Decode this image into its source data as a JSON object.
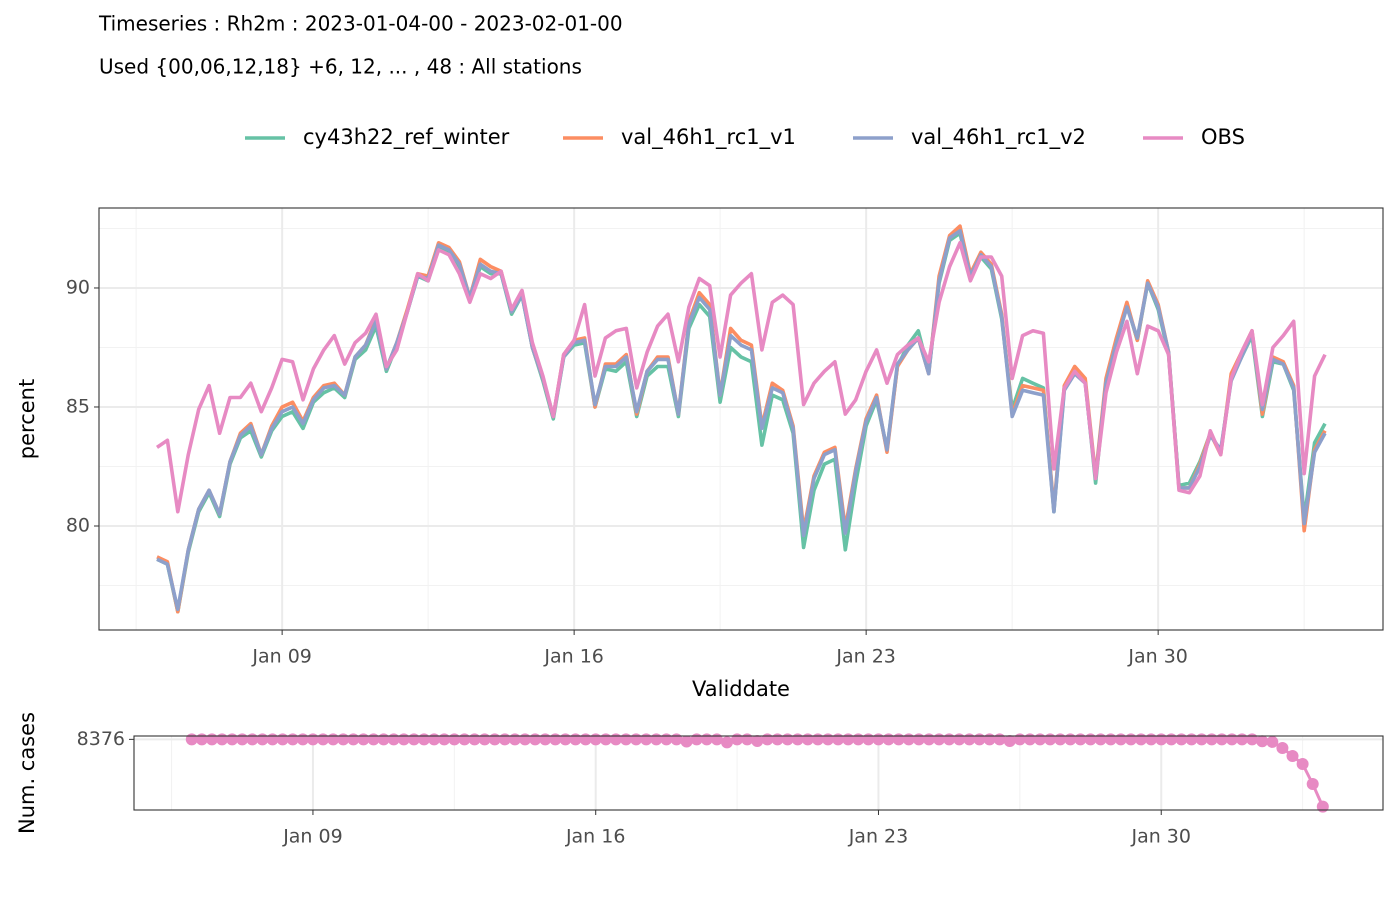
{
  "chart_data": [
    {
      "type": "line",
      "title": "Timeseries : Rh2m : 2023-01-04-00 - 2023-02-01-00",
      "subtitle": "Used {00,06,12,18} +6, 12, ... , 48 : All stations",
      "x_label": "Validdate",
      "y_label": "percent",
      "legend": "top",
      "grid": true,
      "xlim": [
        4.61,
        35.39
      ],
      "xticks": [
        {
          "value": 9,
          "label": "Jan 09"
        },
        {
          "value": 16,
          "label": "Jan 16"
        },
        {
          "value": 23,
          "label": "Jan 23"
        },
        {
          "value": 30,
          "label": "Jan 30"
        }
      ],
      "ylim": [
        75.63,
        93.36
      ],
      "yticks": [
        80,
        85,
        90
      ],
      "x": [
        6,
        6.25,
        6.5,
        6.75,
        7,
        7.25,
        7.5,
        7.75,
        8,
        8.25,
        8.5,
        8.75,
        9,
        9.25,
        9.5,
        9.75,
        10,
        10.25,
        10.5,
        10.75,
        11,
        11.25,
        11.5,
        11.75,
        12,
        12.25,
        12.5,
        12.75,
        13,
        13.25,
        13.5,
        13.75,
        14,
        14.25,
        14.5,
        14.75,
        15,
        15.25,
        15.5,
        15.75,
        16,
        16.25,
        16.5,
        16.75,
        17,
        17.25,
        17.5,
        17.75,
        18,
        18.25,
        18.5,
        18.75,
        19,
        19.25,
        19.5,
        19.75,
        20,
        20.25,
        20.5,
        20.75,
        21,
        21.25,
        21.5,
        21.75,
        22,
        22.25,
        22.5,
        22.75,
        23,
        23.25,
        23.5,
        23.75,
        24,
        24.25,
        24.5,
        24.75,
        25,
        25.25,
        25.5,
        25.75,
        26,
        26.25,
        26.5,
        26.75,
        27,
        27.25,
        27.5,
        27.75,
        28,
        28.25,
        28.5,
        28.75,
        29,
        29.25,
        29.5,
        29.75,
        30,
        30.25,
        30.5,
        30.75,
        31,
        31.25,
        31.5,
        31.75,
        32,
        32.25,
        32.5,
        32.75,
        33,
        33.25,
        33.5,
        33.75,
        34
      ],
      "series": [
        {
          "name": "cy43h22_ref_winter",
          "color": "#66c2a5",
          "values": [
            78.6,
            78.4,
            76.4,
            78.9,
            80.6,
            81.4,
            80.4,
            82.6,
            83.7,
            84.0,
            82.9,
            84.0,
            84.6,
            84.8,
            84.1,
            85.2,
            85.6,
            85.8,
            85.4,
            87.0,
            87.4,
            88.4,
            86.5,
            87.6,
            89.0,
            90.5,
            90.3,
            91.7,
            91.5,
            90.9,
            89.5,
            90.9,
            90.6,
            90.6,
            88.9,
            89.7,
            87.5,
            86.1,
            84.5,
            87.1,
            87.6,
            87.7,
            85.0,
            86.6,
            86.5,
            86.9,
            84.6,
            86.3,
            86.7,
            86.7,
            84.6,
            88.3,
            89.3,
            88.8,
            85.2,
            87.5,
            87.1,
            86.9,
            83.4,
            85.5,
            85.3,
            83.9,
            79.1,
            81.5,
            82.6,
            82.8,
            79.0,
            81.8,
            84.2,
            85.3,
            83.2,
            86.7,
            87.6,
            88.2,
            86.5,
            90.2,
            92.0,
            92.3,
            90.4,
            91.3,
            90.8,
            88.7,
            84.9,
            86.2,
            86.0,
            85.8,
            80.6,
            85.8,
            86.6,
            86.1,
            81.8,
            86.1,
            87.8,
            89.3,
            87.8,
            90.2,
            89.1,
            87.2,
            81.7,
            81.8,
            82.7,
            83.9,
            83.1,
            86.2,
            87.1,
            88.0,
            84.6,
            86.9,
            86.8,
            85.7,
            80.3,
            83.5,
            84.3
          ]
        },
        {
          "name": "val_46h1_rc1_v1",
          "color": "#fc8d62",
          "values": [
            78.7,
            78.5,
            76.4,
            79.0,
            80.7,
            81.5,
            80.5,
            82.7,
            83.9,
            84.3,
            83.0,
            84.2,
            85.0,
            85.2,
            84.4,
            85.4,
            85.9,
            86.0,
            85.5,
            87.1,
            87.6,
            88.7,
            86.6,
            87.7,
            89.1,
            90.6,
            90.5,
            91.9,
            91.7,
            91.1,
            89.6,
            91.2,
            90.9,
            90.7,
            89.0,
            89.8,
            87.5,
            86.2,
            84.6,
            87.2,
            87.8,
            87.9,
            85.0,
            86.8,
            86.8,
            87.2,
            84.7,
            86.5,
            87.1,
            87.1,
            84.7,
            88.6,
            89.8,
            89.3,
            85.5,
            88.3,
            87.8,
            87.6,
            84.2,
            86.0,
            85.7,
            84.2,
            79.8,
            82.1,
            83.1,
            83.3,
            79.9,
            82.4,
            84.5,
            85.5,
            83.1,
            86.7,
            87.4,
            87.9,
            86.4,
            90.5,
            92.2,
            92.6,
            90.6,
            91.5,
            91.0,
            88.9,
            84.7,
            85.9,
            85.8,
            85.7,
            80.7,
            85.9,
            86.7,
            86.2,
            82.1,
            86.2,
            87.9,
            89.4,
            87.8,
            90.3,
            89.3,
            87.3,
            81.6,
            81.6,
            82.6,
            83.9,
            83.0,
            86.4,
            87.3,
            88.2,
            84.7,
            87.1,
            86.9,
            85.9,
            79.8,
            83.2,
            84.0
          ]
        },
        {
          "name": "val_46h1_rc1_v2",
          "color": "#8da0cb",
          "values": [
            78.6,
            78.4,
            76.5,
            79.0,
            80.7,
            81.5,
            80.5,
            82.7,
            83.8,
            84.2,
            83.0,
            84.1,
            84.8,
            85.0,
            84.3,
            85.3,
            85.8,
            85.9,
            85.5,
            87.1,
            87.6,
            88.6,
            86.6,
            87.7,
            89.0,
            90.5,
            90.4,
            91.8,
            91.6,
            91.0,
            89.6,
            91.0,
            90.7,
            90.6,
            89.0,
            89.7,
            87.5,
            86.2,
            84.6,
            87.1,
            87.7,
            87.8,
            85.1,
            86.7,
            86.7,
            87.1,
            84.8,
            86.5,
            87.0,
            87.0,
            84.7,
            88.5,
            89.6,
            89.1,
            85.5,
            88.0,
            87.6,
            87.4,
            84.1,
            85.8,
            85.6,
            84.1,
            79.6,
            82.0,
            83.0,
            83.2,
            79.7,
            82.3,
            84.4,
            85.4,
            83.2,
            86.8,
            87.4,
            87.9,
            86.4,
            90.3,
            92.1,
            92.4,
            90.5,
            91.4,
            90.9,
            88.8,
            84.6,
            85.7,
            85.6,
            85.5,
            80.6,
            85.7,
            86.4,
            86.0,
            82.0,
            86.0,
            87.7,
            89.2,
            87.9,
            90.2,
            89.2,
            87.3,
            81.6,
            81.6,
            82.5,
            83.8,
            83.2,
            86.1,
            87.1,
            88.1,
            84.9,
            87.0,
            86.8,
            85.8,
            80.1,
            83.1,
            83.9
          ]
        },
        {
          "name": "OBS",
          "color": "#e78ac3",
          "values": [
            83.3,
            83.6,
            80.6,
            83.0,
            84.9,
            85.9,
            83.9,
            85.4,
            85.4,
            86.0,
            84.8,
            85.8,
            87.0,
            86.9,
            85.3,
            86.6,
            87.4,
            88.0,
            86.8,
            87.7,
            88.1,
            88.9,
            86.7,
            87.4,
            89.0,
            90.6,
            90.3,
            91.6,
            91.4,
            90.6,
            89.4,
            90.6,
            90.4,
            90.7,
            89.1,
            89.9,
            87.7,
            86.3,
            84.6,
            87.2,
            87.8,
            89.3,
            86.3,
            87.9,
            88.2,
            88.3,
            85.8,
            87.3,
            88.4,
            88.9,
            86.9,
            89.2,
            90.4,
            90.1,
            87.1,
            89.7,
            90.2,
            90.6,
            87.4,
            89.4,
            89.7,
            89.3,
            85.1,
            86.0,
            86.5,
            86.9,
            84.7,
            85.3,
            86.5,
            87.4,
            86.0,
            87.2,
            87.6,
            87.9,
            86.9,
            89.4,
            90.9,
            91.9,
            90.3,
            91.3,
            91.3,
            90.5,
            86.2,
            88.0,
            88.2,
            88.1,
            82.4,
            85.8,
            86.5,
            86.0,
            82.0,
            85.6,
            87.3,
            88.6,
            86.4,
            88.4,
            88.2,
            87.2,
            81.5,
            81.4,
            82.1,
            84.0,
            83.0,
            86.2,
            87.3,
            88.2,
            85.1,
            87.5,
            88.0,
            88.6,
            82.2,
            86.3,
            87.2
          ]
        }
      ]
    },
    {
      "type": "line",
      "markers": true,
      "y_label": "Num. cases",
      "grid": true,
      "color": "#e78ac3",
      "xlim": [
        4.57,
        35.49
      ],
      "xticks": [
        {
          "value": 9,
          "label": "Jan 09"
        },
        {
          "value": 16,
          "label": "Jan 16"
        },
        {
          "value": 23,
          "label": "Jan 23"
        },
        {
          "value": 30,
          "label": "Jan 30"
        }
      ],
      "ylim": [
        7771.2,
        8404.8
      ],
      "yticks": [
        8376
      ],
      "x": [
        6,
        6.25,
        6.5,
        6.75,
        7,
        7.25,
        7.5,
        7.75,
        8,
        8.25,
        8.5,
        8.75,
        9,
        9.25,
        9.5,
        9.75,
        10,
        10.25,
        10.5,
        10.75,
        11,
        11.25,
        11.5,
        11.75,
        12,
        12.25,
        12.5,
        12.75,
        13,
        13.25,
        13.5,
        13.75,
        14,
        14.25,
        14.5,
        14.75,
        15,
        15.25,
        15.5,
        15.75,
        16,
        16.25,
        16.5,
        16.75,
        17,
        17.25,
        17.5,
        17.75,
        18,
        18.25,
        18.5,
        18.75,
        19,
        19.25,
        19.5,
        19.75,
        20,
        20.25,
        20.5,
        20.75,
        21,
        21.25,
        21.5,
        21.75,
        22,
        22.25,
        22.5,
        22.75,
        23,
        23.25,
        23.5,
        23.75,
        24,
        24.25,
        24.5,
        24.75,
        25,
        25.25,
        25.5,
        25.75,
        26,
        26.25,
        26.5,
        26.75,
        27,
        27.25,
        27.5,
        27.75,
        28,
        28.25,
        28.5,
        28.75,
        29,
        29.25,
        29.5,
        29.75,
        30,
        30.25,
        30.5,
        30.75,
        31,
        31.25,
        31.5,
        31.75,
        32,
        32.25,
        32.5,
        32.75,
        33,
        33.25,
        33.5,
        33.75,
        34
      ],
      "values": [
        8376,
        8376,
        8376,
        8376,
        8376,
        8376,
        8376,
        8376,
        8376,
        8376,
        8376,
        8376,
        8376,
        8376,
        8376,
        8376,
        8376,
        8376,
        8376,
        8376,
        8376,
        8376,
        8376,
        8376,
        8376,
        8376,
        8376,
        8376,
        8376,
        8376,
        8376,
        8376,
        8376,
        8376,
        8376,
        8376,
        8376,
        8376,
        8376,
        8376,
        8376,
        8376,
        8376,
        8376,
        8376,
        8376,
        8376,
        8376,
        8376,
        8358,
        8376,
        8376,
        8376,
        8350,
        8376,
        8376,
        8362,
        8376,
        8376,
        8376,
        8376,
        8376,
        8376,
        8376,
        8376,
        8376,
        8376,
        8376,
        8376,
        8376,
        8376,
        8376,
        8376,
        8376,
        8376,
        8376,
        8376,
        8376,
        8376,
        8376,
        8376,
        8362,
        8376,
        8376,
        8376,
        8376,
        8376,
        8376,
        8376,
        8376,
        8376,
        8376,
        8376,
        8376,
        8376,
        8376,
        8376,
        8376,
        8376,
        8376,
        8376,
        8376,
        8376,
        8376,
        8376,
        8376,
        8360,
        8354,
        8302,
        8234,
        8165,
        7994,
        7800
      ]
    }
  ]
}
